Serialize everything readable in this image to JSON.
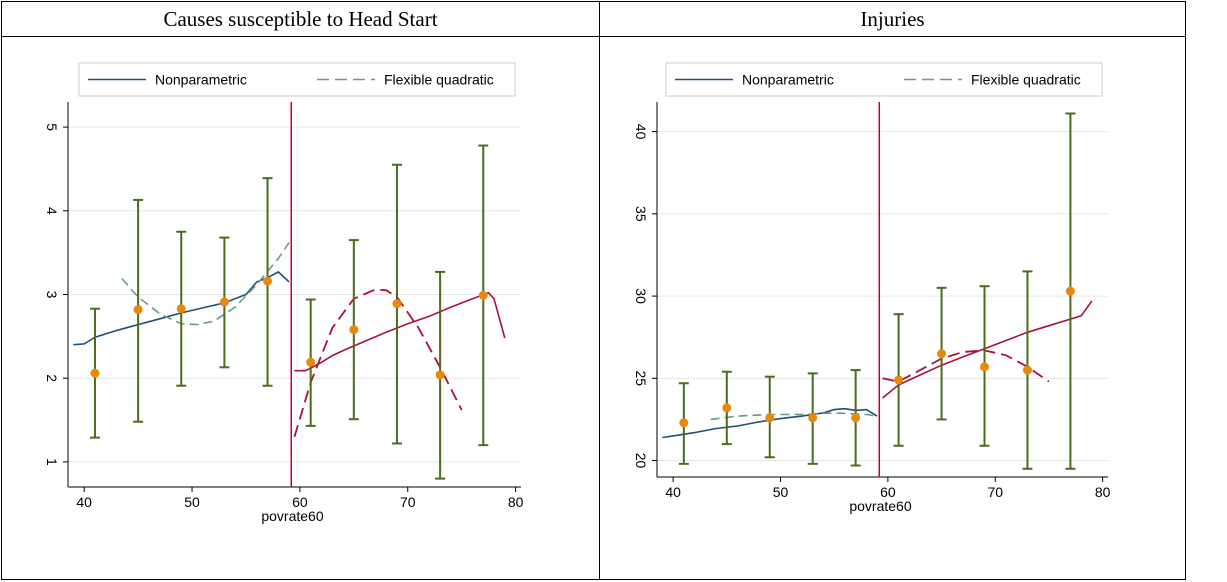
{
  "panel_titles": [
    "Causes susceptible to Head Start",
    "Injuries"
  ],
  "legend": {
    "nonparametric": "Nonparametric",
    "flexible_quadratic": "Flexible quadratic"
  },
  "colors": {
    "nonparametric_left": "#1f4e79",
    "quadratic_left": "#6b9a8a",
    "right_fit": "#a8123a",
    "point": "#e8890c",
    "errorbar": "#4d6b1e",
    "cutoff": "#c00030",
    "grid": "#e6e6e6"
  },
  "chart_data": [
    {
      "type": "scatter",
      "title": "Causes susceptible to Head Start",
      "xlabel": "povrate60",
      "ylabel": "",
      "xlim": [
        38.5,
        80.5
      ],
      "ylim": [
        0.7,
        5.3
      ],
      "xticks": [
        40,
        50,
        60,
        70,
        80
      ],
      "yticks": [
        1,
        2,
        3,
        4,
        5
      ],
      "cutoff": 59.2,
      "points": {
        "x": [
          41,
          45,
          49,
          53,
          57,
          61,
          65,
          69,
          73,
          77
        ],
        "y": [
          2.06,
          2.82,
          2.83,
          2.91,
          3.16,
          2.19,
          2.58,
          2.89,
          2.04,
          2.99
        ],
        "lo": [
          1.29,
          1.48,
          1.91,
          2.13,
          1.91,
          1.43,
          1.51,
          1.22,
          0.8,
          1.2
        ],
        "hi": [
          2.83,
          4.13,
          3.75,
          3.68,
          4.39,
          2.94,
          3.65,
          4.55,
          3.27,
          4.78
        ]
      },
      "nonparametric_left": {
        "x": [
          39,
          40,
          41,
          43,
          45,
          47,
          49,
          51,
          53,
          55,
          56,
          57,
          58,
          59
        ],
        "y": [
          2.4,
          2.41,
          2.49,
          2.57,
          2.64,
          2.71,
          2.78,
          2.84,
          2.9,
          3.0,
          3.15,
          3.2,
          3.27,
          3.15
        ]
      },
      "quadratic_left": {
        "x": [
          43.5,
          45,
          47,
          49,
          50.5,
          52,
          54,
          56,
          58,
          59
        ],
        "y": [
          3.19,
          2.97,
          2.77,
          2.65,
          2.64,
          2.68,
          2.85,
          3.12,
          3.43,
          3.62
        ]
      },
      "nonparametric_right": {
        "x": [
          59.5,
          60.5,
          61,
          62,
          63,
          64,
          66,
          68,
          70,
          72,
          74,
          76,
          77.5,
          78,
          79
        ],
        "y": [
          2.09,
          2.09,
          2.12,
          2.19,
          2.27,
          2.33,
          2.44,
          2.55,
          2.65,
          2.74,
          2.85,
          2.95,
          3.02,
          2.95,
          2.48
        ]
      },
      "quadratic_right": {
        "x": [
          59.5,
          61,
          63,
          65,
          67,
          68,
          69,
          71,
          73,
          75
        ],
        "y": [
          1.3,
          1.95,
          2.6,
          2.95,
          3.06,
          3.05,
          2.97,
          2.6,
          2.13,
          1.62
        ]
      }
    },
    {
      "type": "scatter",
      "title": "Injuries",
      "xlabel": "povrate60",
      "ylabel": "",
      "xlim": [
        38.5,
        80.5
      ],
      "ylim": [
        19.0,
        41.8
      ],
      "xticks": [
        40,
        50,
        60,
        70,
        80
      ],
      "yticks": [
        20,
        25,
        30,
        35,
        40
      ],
      "cutoff": 59.2,
      "points": {
        "x": [
          41,
          45,
          49,
          53,
          57,
          61,
          65,
          69,
          73,
          77
        ],
        "y": [
          22.3,
          23.2,
          22.6,
          22.6,
          22.6,
          24.9,
          26.5,
          25.7,
          25.5,
          30.3
        ],
        "lo": [
          19.8,
          21.0,
          20.2,
          19.8,
          19.7,
          20.9,
          22.5,
          20.9,
          19.5,
          19.5
        ],
        "hi": [
          24.7,
          25.4,
          25.1,
          25.3,
          25.5,
          28.9,
          30.5,
          30.6,
          31.5,
          41.1
        ]
      },
      "nonparametric_left": {
        "x": [
          39,
          40,
          42,
          44,
          46,
          48,
          50,
          52,
          54,
          55,
          56,
          57,
          58,
          59
        ],
        "y": [
          21.4,
          21.5,
          21.7,
          21.95,
          22.1,
          22.35,
          22.55,
          22.7,
          22.9,
          23.1,
          23.15,
          23.05,
          23.1,
          22.7
        ]
      },
      "quadratic_left": {
        "x": [
          43.5,
          46,
          49,
          52,
          55,
          58,
          59
        ],
        "y": [
          22.5,
          22.7,
          22.8,
          22.8,
          22.9,
          22.8,
          22.7
        ]
      },
      "nonparametric_right": {
        "x": [
          59.5,
          61,
          63,
          65,
          67,
          69,
          71,
          73,
          75,
          77,
          78,
          79
        ],
        "y": [
          23.8,
          24.6,
          25.2,
          25.8,
          26.3,
          26.8,
          27.3,
          27.8,
          28.2,
          28.6,
          28.8,
          29.7
        ]
      },
      "quadratic_right": {
        "x": [
          59.5,
          61,
          63,
          65,
          67,
          69,
          71,
          73,
          75
        ],
        "y": [
          25.0,
          24.8,
          25.5,
          26.2,
          26.6,
          26.7,
          26.4,
          25.7,
          24.8
        ]
      }
    }
  ]
}
